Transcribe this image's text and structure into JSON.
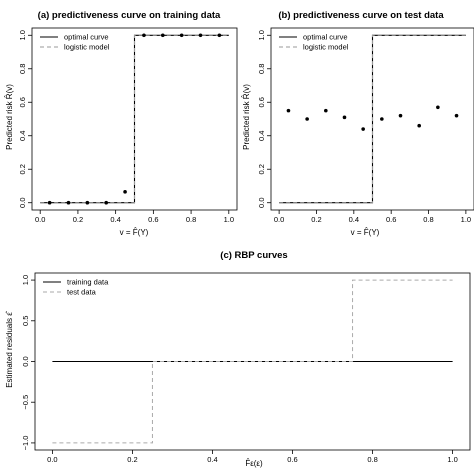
{
  "chart_data": [
    {
      "id": "a",
      "type": "line",
      "title": "(a) predictiveness curve on training data",
      "xlabel": "v = F̂(Y)",
      "ylabel": "Predicted risk R̂(v)",
      "xlim": [
        0,
        1
      ],
      "ylim": [
        0,
        1
      ],
      "xticks": [
        "0.0",
        "0.2",
        "0.4",
        "0.6",
        "0.8",
        "1.0"
      ],
      "yticks": [
        "0.0",
        "0.2",
        "0.4",
        "0.6",
        "0.8",
        "1.0"
      ],
      "grid": false,
      "legend_position": "top-left",
      "series": [
        {
          "name": "optimal curve",
          "style": "solid",
          "color": "#000000",
          "x": [
            0,
            0.5,
            0.5,
            1
          ],
          "y": [
            0,
            0,
            1,
            1
          ]
        },
        {
          "name": "logistic model",
          "style": "dashed",
          "color": "#999999",
          "x": [
            0,
            0.5,
            0.5,
            1
          ],
          "y": [
            0,
            0,
            1,
            1
          ]
        }
      ],
      "points": {
        "x": [
          0.05,
          0.15,
          0.25,
          0.35,
          0.45,
          0.55,
          0.65,
          0.75,
          0.85,
          0.95
        ],
        "y": [
          0.0,
          0.0,
          0.0,
          0.0,
          0.065,
          1.0,
          1.0,
          1.0,
          1.0,
          1.0
        ]
      }
    },
    {
      "id": "b",
      "type": "line",
      "title": "(b) predictiveness curve on test data",
      "xlabel": "v = F̂(Y)",
      "ylabel": "Predicted risk R̂(v)",
      "xlim": [
        0,
        1
      ],
      "ylim": [
        0,
        1
      ],
      "xticks": [
        "0.0",
        "0.2",
        "0.4",
        "0.6",
        "0.8",
        "1.0"
      ],
      "yticks": [
        "0.0",
        "0.2",
        "0.4",
        "0.6",
        "0.8",
        "1.0"
      ],
      "grid": false,
      "legend_position": "top-left",
      "series": [
        {
          "name": "optimal curve",
          "style": "solid",
          "color": "#000000",
          "x": [
            0,
            0.5,
            0.5,
            1
          ],
          "y": [
            0,
            0,
            1,
            1
          ]
        },
        {
          "name": "logistic model",
          "style": "dashed",
          "color": "#999999",
          "x": [
            0,
            0.5,
            0.5,
            1
          ],
          "y": [
            0,
            0,
            1,
            1
          ]
        }
      ],
      "points": {
        "x": [
          0.05,
          0.15,
          0.25,
          0.35,
          0.45,
          0.55,
          0.65,
          0.75,
          0.85,
          0.95
        ],
        "y": [
          0.55,
          0.5,
          0.55,
          0.51,
          0.44,
          0.5,
          0.52,
          0.46,
          0.57,
          0.52
        ]
      }
    },
    {
      "id": "c",
      "type": "line",
      "title": "(c) RBP curves",
      "xlabel": "F̂ε(ε)",
      "ylabel": "Estimated residuals ε̂",
      "xlim": [
        0,
        1
      ],
      "ylim": [
        -1,
        1
      ],
      "xticks": [
        "0.0",
        "0.2",
        "0.4",
        "0.6",
        "0.8",
        "1.0"
      ],
      "yticks": [
        "−1.0",
        "−0.5",
        "0.0",
        "0.5",
        "1.0"
      ],
      "grid": false,
      "legend_position": "top-left",
      "series": [
        {
          "name": "training data",
          "style": "solid",
          "color": "#000000",
          "x": [
            0,
            1
          ],
          "y": [
            0,
            0
          ]
        },
        {
          "name": "test data",
          "style": "dashed",
          "color": "#aaaaaa",
          "x": [
            0,
            0.25,
            0.25,
            0.75,
            0.75,
            1
          ],
          "y": [
            -1,
            -1,
            0,
            0,
            1,
            1
          ]
        }
      ]
    }
  ]
}
